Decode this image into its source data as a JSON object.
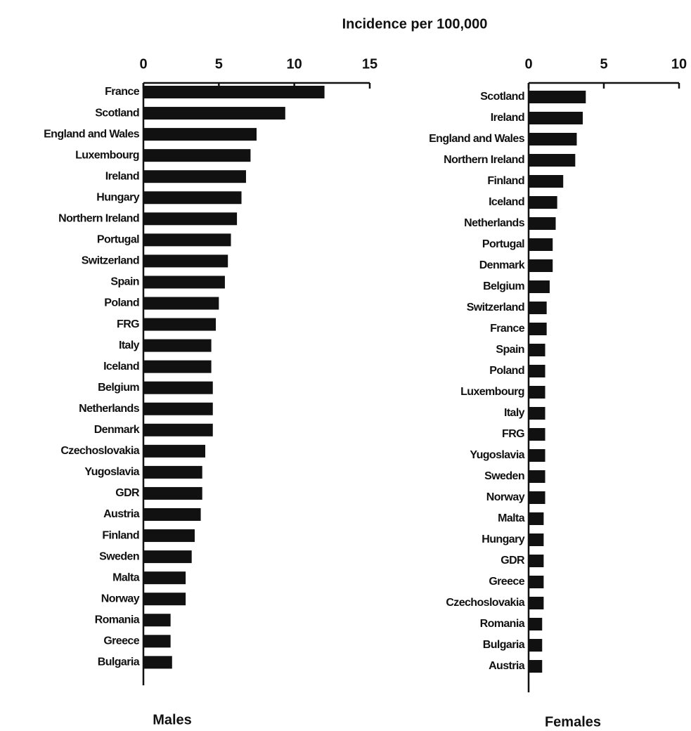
{
  "title": "Incidence per 100,000",
  "chart_data": [
    {
      "type": "bar",
      "orientation": "horizontal",
      "label": "Males",
      "color": "#111111",
      "categories": [
        "France",
        "Scotland",
        "England and Wales",
        "Luxembourg",
        "Ireland",
        "Hungary",
        "Northern Ireland",
        "Portugal",
        "Switzerland",
        "Spain",
        "Poland",
        "FRG",
        "Italy",
        "Iceland",
        "Belgium",
        "Netherlands",
        "Denmark",
        "Czechoslovakia",
        "Yugoslavia",
        "GDR",
        "Austria",
        "Finland",
        "Sweden",
        "Malta",
        "Norway",
        "Romania",
        "Greece",
        "Bulgaria"
      ],
      "values": [
        12.0,
        9.4,
        7.5,
        7.1,
        6.8,
        6.5,
        6.2,
        5.8,
        5.6,
        5.4,
        5.0,
        4.8,
        4.5,
        4.5,
        4.6,
        4.6,
        4.6,
        4.1,
        3.9,
        3.9,
        3.8,
        3.4,
        3.2,
        2.8,
        2.8,
        1.8,
        1.8,
        1.9
      ],
      "xlim": [
        0,
        15
      ],
      "xticks": [
        0,
        5,
        10,
        15
      ]
    },
    {
      "type": "bar",
      "orientation": "horizontal",
      "label": "Females",
      "color": "#111111",
      "categories": [
        "Scotland",
        "Ireland",
        "England and Wales",
        "Northern Ireland",
        "Finland",
        "Iceland",
        "Netherlands",
        "Portugal",
        "Denmark",
        "Belgium",
        "Switzerland",
        "France",
        "Spain",
        "Poland",
        "Luxembourg",
        "Italy",
        "FRG",
        "Yugoslavia",
        "Sweden",
        "Norway",
        "Malta",
        "Hungary",
        "GDR",
        "Greece",
        "Czechoslovakia",
        "Romania",
        "Bulgaria",
        "Austria"
      ],
      "values": [
        3.8,
        3.6,
        3.2,
        3.1,
        2.3,
        1.9,
        1.8,
        1.6,
        1.6,
        1.4,
        1.2,
        1.2,
        1.1,
        1.1,
        1.1,
        1.1,
        1.1,
        1.1,
        1.1,
        1.1,
        1.0,
        1.0,
        1.0,
        1.0,
        1.0,
        0.9,
        0.9,
        0.9
      ],
      "xlim": [
        0,
        10
      ],
      "xticks": [
        0,
        5,
        10
      ]
    }
  ]
}
